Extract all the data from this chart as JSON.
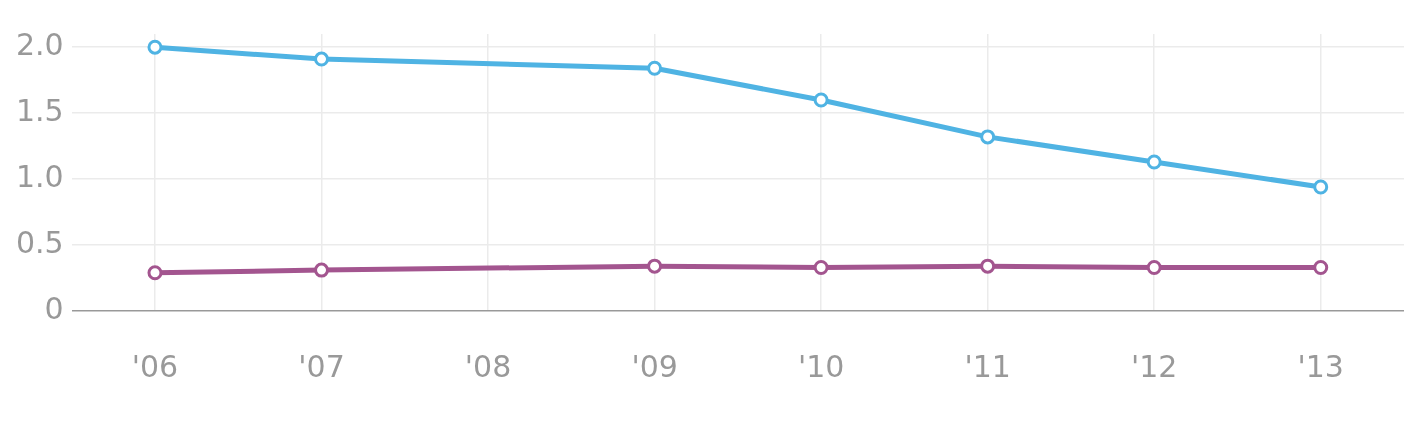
{
  "chart_data": {
    "type": "line",
    "categories": [
      "'06",
      "'07",
      "'08",
      "'09",
      "'10",
      "'11",
      "'12",
      "'13"
    ],
    "series": [
      {
        "color": "#4fb3e3",
        "values": [
          2.0,
          1.91,
          null,
          1.84,
          1.6,
          1.32,
          1.13,
          0.94
        ]
      },
      {
        "color": "#a3558f",
        "values": [
          0.29,
          0.31,
          null,
          0.34,
          0.33,
          0.34,
          0.33,
          0.33
        ]
      }
    ],
    "ylim": [
      0,
      2.1
    ],
    "yticks": [
      0,
      0.5,
      {
        "value": 1,
        "label": "1.0"
      },
      1.5,
      {
        "value": 2,
        "label": "2.0"
      }
    ],
    "grid": true,
    "legend": false,
    "marker": "circle",
    "line_style": "solid"
  }
}
